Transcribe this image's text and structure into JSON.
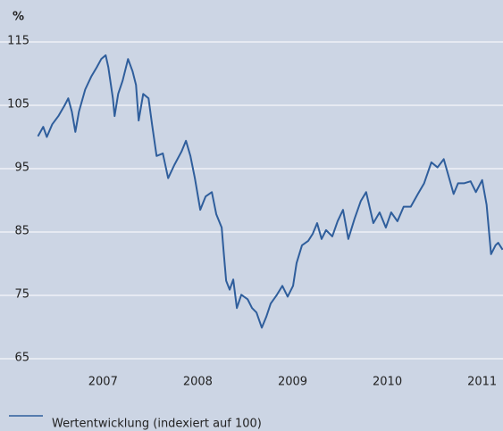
{
  "chart_data": {
    "type": "line",
    "y_unit": "%",
    "x": [
      2006.313,
      2006.369,
      2006.407,
      2006.464,
      2006.529,
      2006.595,
      2006.633,
      2006.671,
      2006.708,
      2006.746,
      2006.812,
      2006.878,
      2006.934,
      2006.981,
      2007.028,
      2007.056,
      2007.104,
      2007.122,
      2007.16,
      2007.207,
      2007.264,
      2007.311,
      2007.348,
      2007.376,
      2007.424,
      2007.48,
      2007.518,
      2007.565,
      2007.631,
      2007.687,
      2007.753,
      2007.828,
      2007.875,
      2007.922,
      2007.969,
      2008.026,
      2008.082,
      2008.148,
      2008.195,
      2008.252,
      2008.271,
      2008.299,
      2008.336,
      2008.374,
      2008.412,
      2008.459,
      2008.525,
      2008.572,
      2008.619,
      2008.675,
      2008.722,
      2008.769,
      2008.835,
      2008.892,
      2008.948,
      2009.005,
      2009.042,
      2009.099,
      2009.165,
      2009.212,
      2009.259,
      2009.306,
      2009.353,
      2009.419,
      2009.475,
      2009.532,
      2009.588,
      2009.654,
      2009.72,
      2009.776,
      2009.852,
      2009.918,
      2009.984,
      2010.04,
      2010.106,
      2010.172,
      2010.247,
      2010.322,
      2010.388,
      2010.464,
      2010.529,
      2010.595,
      2010.652,
      2010.699,
      2010.746,
      2010.812,
      2010.878,
      2010.934,
      2011.0,
      2011.047,
      2011.094,
      2011.141,
      2011.169,
      2011.216
    ],
    "series": [
      {
        "name": "Wertentwicklung (indexiert auf 100)",
        "color": "#2f5e9c",
        "values": [
          100.1,
          101.6,
          100,
          102,
          103.3,
          105,
          106.1,
          104,
          100.8,
          104,
          107.5,
          109.6,
          111,
          112.3,
          112.9,
          111,
          106.1,
          103.3,
          106.8,
          108.9,
          112.3,
          110.4,
          108.2,
          102.6,
          106.8,
          106.1,
          101.9,
          97,
          97.4,
          93.5,
          95.6,
          97.7,
          99.4,
          97,
          93.5,
          88.5,
          90.6,
          91.3,
          87.8,
          85.7,
          82.2,
          77.3,
          75.9,
          77.5,
          73,
          75.1,
          74.4,
          73,
          72.3,
          69.9,
          71.6,
          73.7,
          75.1,
          76.5,
          74.8,
          76.5,
          80.1,
          82.9,
          83.6,
          84.7,
          86.4,
          83.9,
          85.3,
          84.3,
          86.7,
          88.5,
          83.9,
          87.1,
          89.9,
          91.3,
          86.4,
          88.1,
          85.7,
          88.1,
          86.7,
          89,
          89,
          91,
          92.7,
          96,
          95.2,
          96.5,
          93.5,
          91,
          92.7,
          92.7,
          93,
          91.3,
          93.2,
          89.3,
          81.5,
          82.9,
          83.3,
          82.2
        ]
      }
    ],
    "xlim": [
      2006.29,
      2011.22
    ],
    "xticks": [
      2007,
      2008,
      2009,
      2010,
      2011
    ],
    "ylim": [
      63,
      118
    ],
    "yticks": [
      65,
      75,
      85,
      95,
      105,
      115
    ],
    "grid": true
  }
}
